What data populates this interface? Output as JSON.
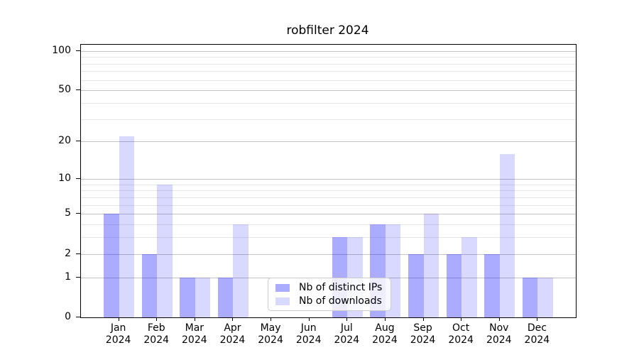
{
  "title": "robfilter 2024",
  "legend": {
    "items": [
      {
        "label": "Nb of distinct IPs"
      },
      {
        "label": "Nb of downloads"
      }
    ]
  },
  "colors": {
    "distinct_ips_bar": "rgba(0,0,255,0.33)",
    "downloads_bar": "rgba(0,0,255,0.15)",
    "grid_major": "#c3c3c3",
    "grid_minor": "#e7e7e7",
    "axis": "#000000"
  },
  "chart_data": {
    "type": "bar",
    "title": "robfilter 2024",
    "x_months": [
      "Jan",
      "Feb",
      "Mar",
      "Apr",
      "May",
      "Jun",
      "Jul",
      "Aug",
      "Sep",
      "Oct",
      "Nov",
      "Dec"
    ],
    "x_year": "2024",
    "series": [
      {
        "name": "Nb of distinct IPs",
        "color": "rgba(0,0,255,0.33)",
        "values": [
          5,
          2,
          1,
          1,
          0,
          0,
          3,
          4,
          2,
          2,
          2,
          1
        ]
      },
      {
        "name": "Nb of downloads",
        "color": "rgba(0,0,255,0.15)",
        "values": [
          22,
          9,
          1,
          4,
          0,
          0,
          3,
          4,
          5,
          3,
          16,
          1
        ]
      }
    ],
    "yscale": "log10(1+y)",
    "y_tick_labels": [
      0,
      1,
      2,
      5,
      10,
      20,
      50,
      100
    ],
    "y_minor_gridlines": [
      3,
      4,
      6,
      7,
      8,
      9,
      30,
      40,
      60,
      70,
      80,
      90
    ],
    "ylim": [
      0,
      112
    ],
    "grid": true,
    "legend_position": "lower center"
  }
}
